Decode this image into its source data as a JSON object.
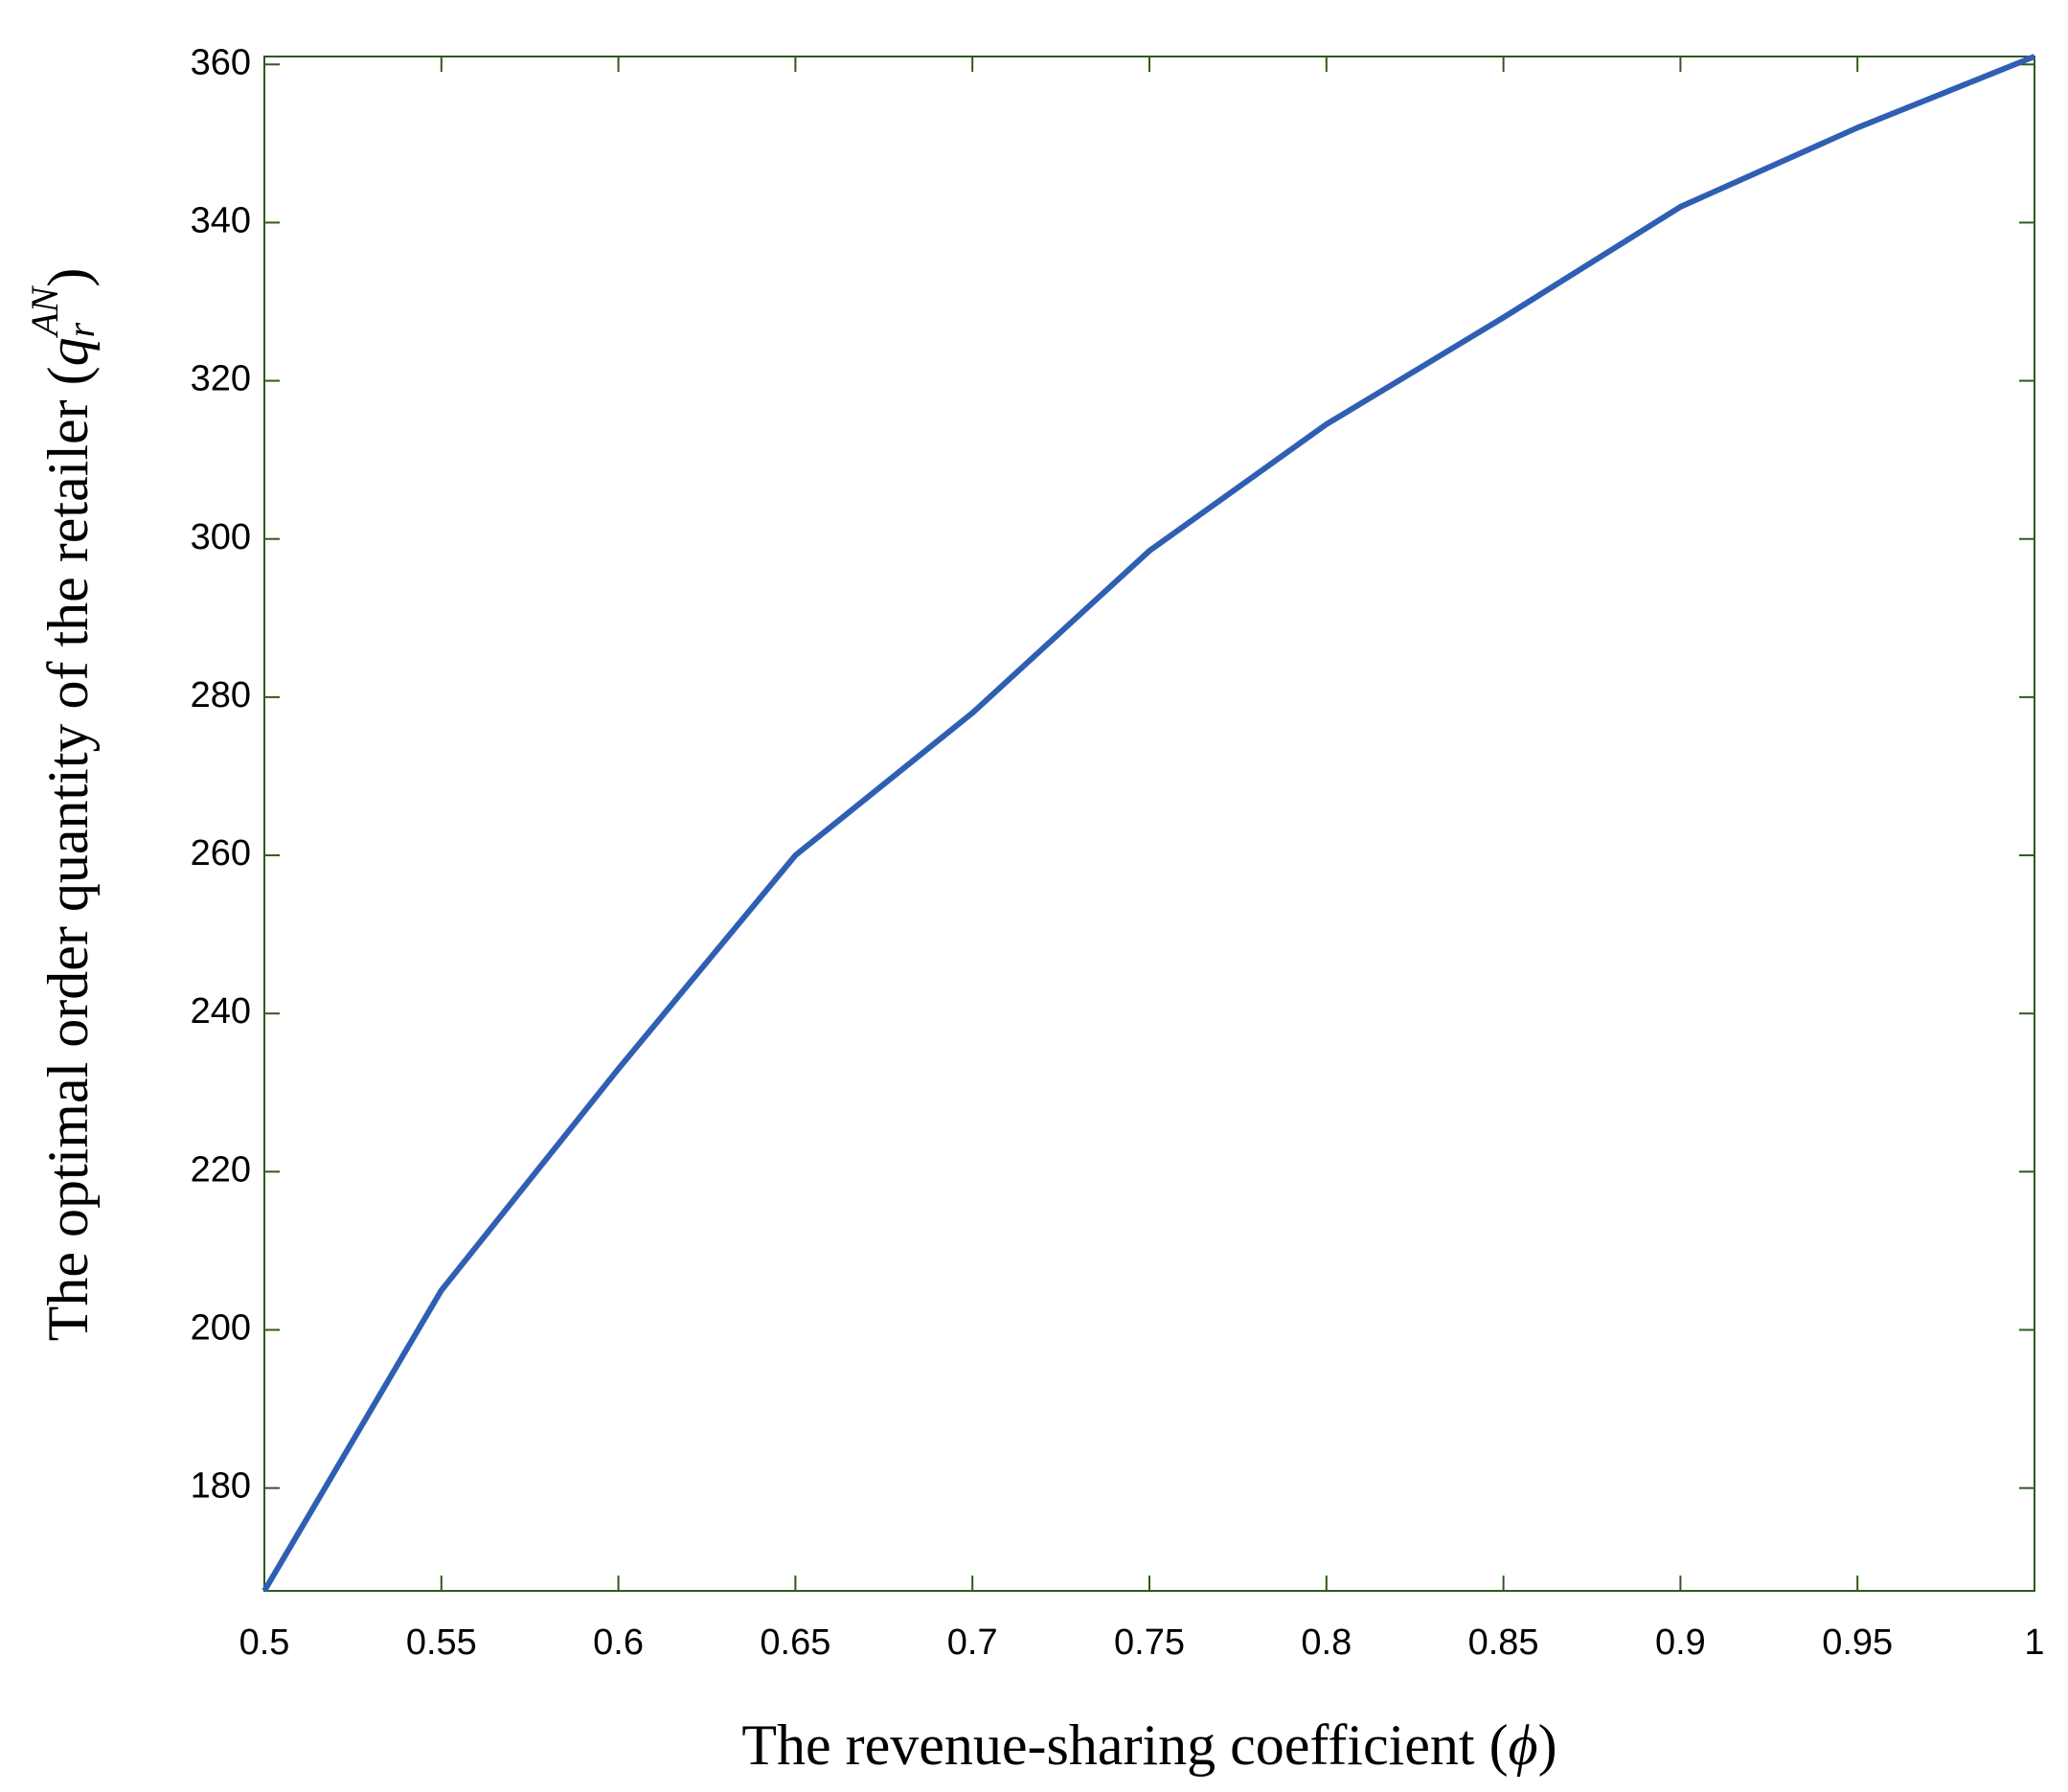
{
  "chart_data": {
    "type": "line",
    "xlabel": [
      "The revenue-sharing coefficient  (",
      "ϕ",
      ")"
    ],
    "ylabel": [
      "The optimal order quantity of the retailer  (",
      "q",
      "r",
      "AN",
      ")"
    ],
    "x": [
      0.5,
      0.55,
      0.6,
      0.65,
      0.7,
      0.75,
      0.8,
      0.85,
      0.9,
      0.95,
      1
    ],
    "series": [
      {
        "color": "#2f5fb3",
        "values": [
          167,
          205,
          233,
          260,
          278,
          298.5,
          314.5,
          328,
          342,
          352,
          361
        ]
      }
    ],
    "xlim": [
      0.5,
      1
    ],
    "xticks": [
      0.5,
      0.55,
      0.6,
      0.65,
      0.7,
      0.75,
      0.8,
      0.85,
      0.9,
      0.95,
      1
    ],
    "ylim": [
      167,
      361
    ],
    "yticks": [
      180,
      200,
      220,
      240,
      260,
      280,
      300,
      320,
      340,
      360
    ],
    "axis_color": "#2d5a1f",
    "grid": false
  }
}
